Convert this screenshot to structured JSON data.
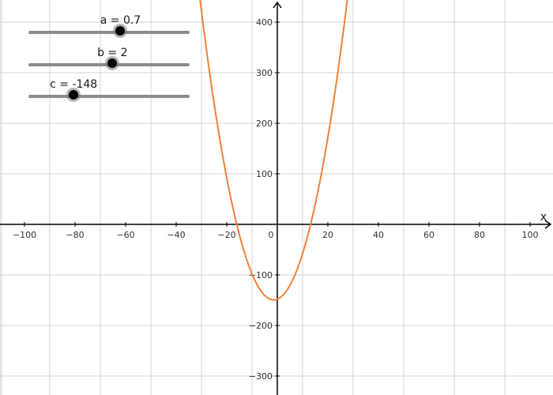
{
  "graph": {
    "x_axis_label": "x",
    "x_ticks": [
      -100,
      -80,
      -60,
      -40,
      -20,
      20,
      40,
      60,
      80,
      100
    ],
    "y_ticks": [
      -300,
      -200,
      -100,
      100,
      200,
      300,
      400
    ],
    "origin_label": "0",
    "xlim": [
      -110,
      110
    ],
    "ylim": [
      -335,
      450
    ],
    "curve_color": "#f4803b",
    "grid_color": "#d3d3d3",
    "axis_color": "#000000"
  },
  "sliders": [
    {
      "name": "a",
      "label": "a = 0.7",
      "value": 0.7,
      "fraction": 0.57
    },
    {
      "name": "b",
      "label": "b = 2",
      "value": 2,
      "fraction": 0.52
    },
    {
      "name": "c",
      "label": "c = -148",
      "value": -148,
      "fraction": 0.28
    }
  ]
}
